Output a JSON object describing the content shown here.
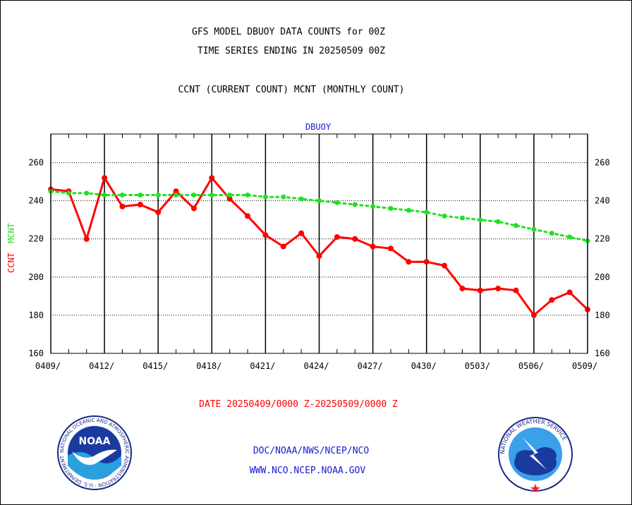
{
  "header": {
    "title_line1": "GFS MODEL DBUOY DATA COUNTS for 00Z",
    "title_line2": "TIME SERIES ENDING IN 20250509 00Z",
    "subtitle": "CCNT (CURRENT COUNT) MCNT (MONTHLY COUNT)"
  },
  "footer": {
    "date_range": "DATE 20250409/0000 Z-20250509/0000 Z",
    "link1": "DOC/NOAA/NWS/NCEP/NCO",
    "link2": "WWW.NCO.NCEP.NOAA.GOV",
    "noaa_logo_text": "NOAA",
    "noaa_seal_text": "NATIONAL OCEANIC AND ATMOSPHERIC ADMINISTRATION · U.S. DEPARTMENT OF COMMERCE",
    "nws_seal_text": "NATIONAL WEATHER SERVICE"
  },
  "chart_data": {
    "type": "line",
    "title": "DBUOY",
    "ylabel_series1": "CCNT",
    "ylabel_series2": "MCNT",
    "ylim": [
      160,
      275
    ],
    "yticks": [
      160,
      180,
      200,
      220,
      240,
      260
    ],
    "xticks": [
      "0409/",
      "0412/",
      "0415/",
      "0418/",
      "0421/",
      "0424/",
      "0427/",
      "0430/",
      "0503/",
      "0506/",
      "0509/"
    ],
    "grid": true,
    "x": [
      "0409",
      "0410",
      "0411",
      "0412",
      "0413",
      "0414",
      "0415",
      "0416",
      "0417",
      "0418",
      "0419",
      "0420",
      "0421",
      "0422",
      "0423",
      "0424",
      "0425",
      "0426",
      "0427",
      "0428",
      "0429",
      "0430",
      "0501",
      "0502",
      "0503",
      "0504",
      "0505",
      "0506",
      "0507",
      "0508",
      "0509"
    ],
    "series": [
      {
        "name": "CCNT",
        "color": "#ff0000",
        "style": "solid",
        "values": [
          246,
          245,
          220,
          252,
          237,
          238,
          234,
          245,
          236,
          252,
          241,
          232,
          222,
          216,
          223,
          211,
          221,
          220,
          216,
          215,
          208,
          208,
          206,
          194,
          193,
          194,
          193,
          180,
          188,
          192,
          183
        ]
      },
      {
        "name": "MCNT",
        "color": "#22e022",
        "style": "dotted",
        "values": [
          245,
          244,
          244,
          243,
          243,
          243,
          243,
          243,
          243,
          243,
          243,
          243,
          242,
          242,
          241,
          240,
          239,
          238,
          237,
          236,
          235,
          234,
          232,
          231,
          230,
          229,
          227,
          225,
          223,
          221,
          219
        ]
      }
    ]
  }
}
